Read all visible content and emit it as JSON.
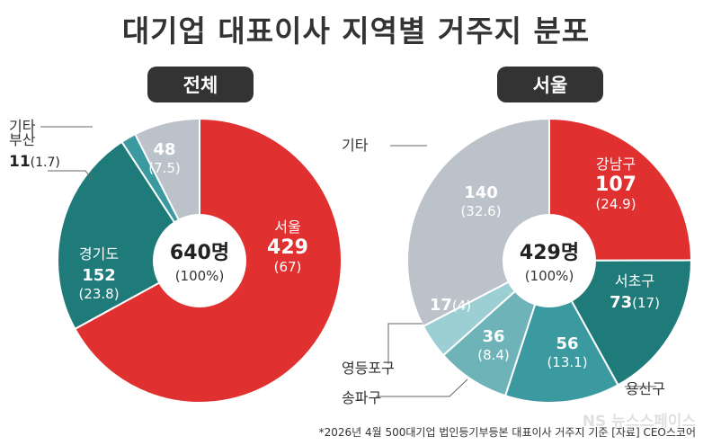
{
  "title": "대기업 대표이사 지역별 거주지 분포",
  "footnote": "*2026년 4월 500대기업 법인등기부등본 대표이사 거주지 기준 [자료] CEO스코어",
  "watermark": "NS 뉴스스페이스",
  "chart_data": [
    {
      "type": "pie",
      "title": "전체",
      "center_value": "640명",
      "center_pct": "(100%)",
      "slices": [
        {
          "label": "서울",
          "value": 429,
          "pct": "67",
          "color": "#e03030",
          "value_display": "429"
        },
        {
          "label": "경기도",
          "value": 152,
          "pct": "23.8",
          "color": "#1f7a7a",
          "value_display": "152"
        },
        {
          "label": "부산",
          "value": 11,
          "pct": "1.7",
          "color": "#3a9aa0",
          "value_display": "11"
        },
        {
          "label": "기타",
          "value": 48,
          "pct": "7.5",
          "color": "#bcc2ca",
          "value_display": "48"
        }
      ]
    },
    {
      "type": "pie",
      "title": "서울",
      "center_value": "429명",
      "center_pct": "(100%)",
      "slices": [
        {
          "label": "강남구",
          "value": 107,
          "pct": "24.9",
          "color": "#e03030",
          "value_display": "107"
        },
        {
          "label": "서초구",
          "value": 73,
          "pct": "17",
          "color": "#1f7a7a",
          "value_display": "73"
        },
        {
          "label": "용산구",
          "value": 56,
          "pct": "13.1",
          "color": "#3a9aa0",
          "value_display": "56"
        },
        {
          "label": "송파구",
          "value": 36,
          "pct": "8.4",
          "color": "#6db3b8",
          "value_display": "36"
        },
        {
          "label": "영등포구",
          "value": 17,
          "pct": "4",
          "color": "#9ccfd3",
          "value_display": "17"
        },
        {
          "label": "기타",
          "value": 140,
          "pct": "32.6",
          "color": "#bcc2ca",
          "value_display": "140"
        }
      ]
    }
  ]
}
